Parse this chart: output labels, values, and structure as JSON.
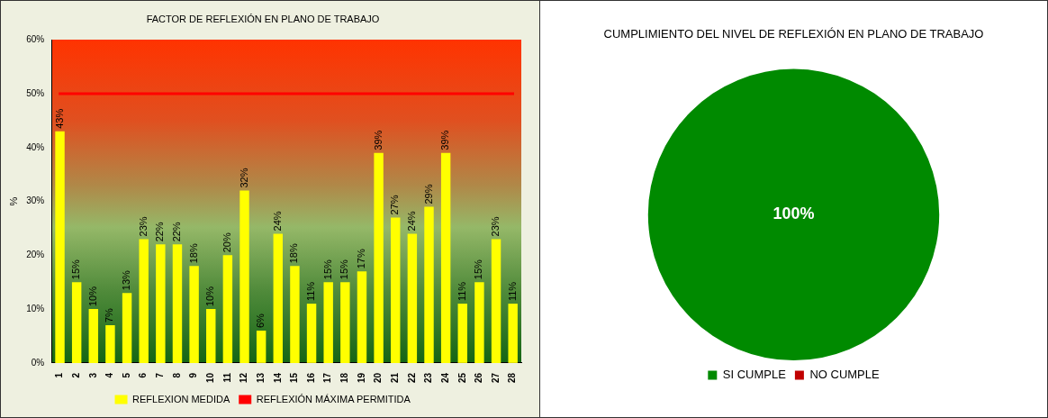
{
  "chart_data": [
    {
      "type": "bar",
      "title": "FACTOR DE REFLEXIÓN EN PLANO DE TRABAJO",
      "ylabel": "%",
      "categories": [
        "1",
        "2",
        "3",
        "4",
        "5",
        "6",
        "7",
        "8",
        "9",
        "10",
        "11",
        "12",
        "13",
        "14",
        "15",
        "16",
        "17",
        "18",
        "19",
        "20",
        "21",
        "22",
        "23",
        "24",
        "25",
        "26",
        "27",
        "28"
      ],
      "series": [
        {
          "name": "REFLEXION MEDIDA",
          "color": "#ffff00",
          "values": [
            43,
            15,
            10,
            7,
            13,
            23,
            22,
            22,
            18,
            10,
            20,
            32,
            6,
            24,
            18,
            11,
            15,
            15,
            17,
            39,
            27,
            24,
            29,
            39,
            11,
            15,
            23,
            11
          ],
          "value_labels": [
            "43%",
            "15%",
            "10%",
            "7%",
            "13%",
            "23%",
            "22%",
            "22%",
            "18%",
            "10%",
            "20%",
            "32%",
            "6%",
            "24%",
            "18%",
            "11%",
            "15%",
            "15%",
            "17%",
            "39%",
            "27%",
            "24%",
            "29%",
            "39%",
            "11%",
            "15%",
            "23%",
            "11%"
          ]
        }
      ],
      "ylim": [
        0,
        60
      ],
      "yticks": [
        {
          "value": 0,
          "label": "0%"
        },
        {
          "value": 10,
          "label": "10%"
        },
        {
          "value": 20,
          "label": "20%"
        },
        {
          "value": 30,
          "label": "30%"
        },
        {
          "value": 40,
          "label": "40%"
        },
        {
          "value": 50,
          "label": "50%"
        },
        {
          "value": 60,
          "label": "60%"
        }
      ],
      "ref_lines": [
        {
          "axis": "y",
          "value": 50,
          "label": "REFLEXIÓN MÁXIMA PERMITIDA",
          "color": "#ff0000"
        }
      ],
      "grid": false,
      "legend": "bottom"
    },
    {
      "type": "pie",
      "title": "CUMPLIMIENTO DEL NIVEL DE REFLEXIÓN EN PLANO DE TRABAJO",
      "categories": [
        "SI CUMPLE",
        "NO CUMPLE"
      ],
      "values": [
        100,
        0
      ],
      "colors": [
        "#008a00",
        "#c00000"
      ],
      "value_labels": [
        "100%",
        null
      ],
      "legend": "bottom"
    }
  ]
}
